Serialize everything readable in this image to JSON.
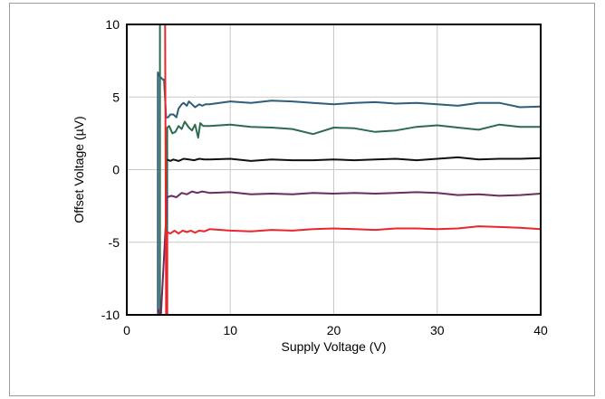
{
  "chart_data": {
    "type": "line",
    "title": "",
    "xlabel": "Supply Voltage (V)",
    "ylabel": "Offset Voltage (µV)",
    "xlim": [
      0,
      40
    ],
    "ylim": [
      -10,
      10
    ],
    "xticks": [
      0,
      10,
      20,
      30,
      40
    ],
    "yticks": [
      -10,
      -5,
      0,
      5,
      10
    ],
    "x_tick_labels": [
      "0",
      "10",
      "20",
      "30",
      "40"
    ],
    "y_tick_labels": [
      "-10",
      "-5",
      "0",
      "5",
      "10"
    ],
    "grid": true,
    "legend": "none",
    "series": [
      {
        "color": "#2e5f7a",
        "points": [
          [
            3.0,
            -10
          ],
          [
            3.0,
            6.7
          ],
          [
            3.2,
            6.4
          ],
          [
            3.5,
            6.2
          ],
          [
            3.6,
            6.2
          ],
          [
            3.8,
            3.6
          ],
          [
            4.0,
            3.6
          ],
          [
            4.2,
            3.8
          ],
          [
            4.5,
            3.8
          ],
          [
            4.8,
            3.6
          ],
          [
            5.0,
            4.2
          ],
          [
            5.3,
            4.5
          ],
          [
            5.5,
            4.6
          ],
          [
            5.8,
            4.4
          ],
          [
            6.0,
            4.7
          ],
          [
            6.3,
            4.5
          ],
          [
            6.6,
            4.3
          ],
          [
            7.0,
            4.5
          ],
          [
            7.3,
            4.4
          ],
          [
            7.6,
            4.5
          ],
          [
            8,
            4.5
          ],
          [
            10,
            4.7
          ],
          [
            12,
            4.6
          ],
          [
            14,
            4.75
          ],
          [
            16,
            4.7
          ],
          [
            18,
            4.6
          ],
          [
            20,
            4.5
          ],
          [
            22,
            4.6
          ],
          [
            24,
            4.65
          ],
          [
            26,
            4.55
          ],
          [
            28,
            4.6
          ],
          [
            30,
            4.5
          ],
          [
            32,
            4.4
          ],
          [
            34,
            4.6
          ],
          [
            36,
            4.6
          ],
          [
            38,
            4.3
          ],
          [
            40,
            4.35
          ]
        ]
      },
      {
        "color": "#2d6b4f",
        "points": [
          [
            3.2,
            10
          ],
          [
            3.2,
            -10
          ],
          [
            3.4,
            -10
          ],
          [
            3.6,
            -10
          ],
          [
            3.9,
            -10
          ],
          [
            3.9,
            2.9
          ],
          [
            4.1,
            3.0
          ],
          [
            4.4,
            2.5
          ],
          [
            4.7,
            2.6
          ],
          [
            5.0,
            3.0
          ],
          [
            5.3,
            2.8
          ],
          [
            5.6,
            3.3
          ],
          [
            6.0,
            2.9
          ],
          [
            6.3,
            2.7
          ],
          [
            6.6,
            3.1
          ],
          [
            6.9,
            2.2
          ],
          [
            7.1,
            3.2
          ],
          [
            7.4,
            3.0
          ],
          [
            8,
            3.0
          ],
          [
            10,
            3.1
          ],
          [
            12,
            2.95
          ],
          [
            14,
            2.9
          ],
          [
            16,
            2.8
          ],
          [
            18,
            2.45
          ],
          [
            20,
            2.9
          ],
          [
            22,
            2.85
          ],
          [
            24,
            2.6
          ],
          [
            26,
            2.7
          ],
          [
            28,
            2.95
          ],
          [
            30,
            3.05
          ],
          [
            32,
            2.9
          ],
          [
            34,
            2.75
          ],
          [
            36,
            3.1
          ],
          [
            38,
            2.95
          ],
          [
            40,
            2.95
          ]
        ]
      },
      {
        "color": "#111111",
        "points": [
          [
            3.9,
            0.7
          ],
          [
            4.2,
            0.6
          ],
          [
            4.5,
            0.7
          ],
          [
            5.0,
            0.6
          ],
          [
            5.5,
            0.75
          ],
          [
            6.0,
            0.7
          ],
          [
            6.5,
            0.65
          ],
          [
            7.0,
            0.75
          ],
          [
            7.5,
            0.7
          ],
          [
            8,
            0.7
          ],
          [
            10,
            0.75
          ],
          [
            12,
            0.6
          ],
          [
            14,
            0.7
          ],
          [
            16,
            0.65
          ],
          [
            18,
            0.65
          ],
          [
            20,
            0.7
          ],
          [
            22,
            0.65
          ],
          [
            24,
            0.7
          ],
          [
            26,
            0.75
          ],
          [
            28,
            0.65
          ],
          [
            30,
            0.75
          ],
          [
            32,
            0.85
          ],
          [
            34,
            0.7
          ],
          [
            36,
            0.75
          ],
          [
            38,
            0.75
          ],
          [
            40,
            0.8
          ]
        ]
      },
      {
        "color": "#6b2c5e",
        "points": [
          [
            3.0,
            -9.6
          ],
          [
            3.1,
            -9.8
          ],
          [
            3.3,
            -10
          ],
          [
            3.9,
            -1.9
          ],
          [
            4.3,
            -1.8
          ],
          [
            4.8,
            -1.9
          ],
          [
            5.3,
            -1.6
          ],
          [
            5.8,
            -1.7
          ],
          [
            6.3,
            -1.5
          ],
          [
            6.8,
            -1.6
          ],
          [
            7.3,
            -1.5
          ],
          [
            8,
            -1.6
          ],
          [
            10,
            -1.55
          ],
          [
            12,
            -1.7
          ],
          [
            14,
            -1.65
          ],
          [
            16,
            -1.7
          ],
          [
            18,
            -1.6
          ],
          [
            20,
            -1.65
          ],
          [
            22,
            -1.6
          ],
          [
            24,
            -1.65
          ],
          [
            26,
            -1.6
          ],
          [
            28,
            -1.55
          ],
          [
            30,
            -1.6
          ],
          [
            32,
            -1.75
          ],
          [
            34,
            -1.7
          ],
          [
            36,
            -1.8
          ],
          [
            38,
            -1.75
          ],
          [
            40,
            -1.65
          ]
        ]
      },
      {
        "color": "#e8262b",
        "points": [
          [
            3.7,
            10
          ],
          [
            3.8,
            -10
          ],
          [
            3.9,
            -10
          ],
          [
            3.9,
            -4.3
          ],
          [
            4.2,
            -4.4
          ],
          [
            4.6,
            -4.2
          ],
          [
            5.0,
            -4.4
          ],
          [
            5.4,
            -4.2
          ],
          [
            5.8,
            -4.3
          ],
          [
            6.2,
            -4.2
          ],
          [
            6.6,
            -4.35
          ],
          [
            7.0,
            -4.2
          ],
          [
            7.5,
            -4.25
          ],
          [
            8,
            -4.1
          ],
          [
            10,
            -4.2
          ],
          [
            12,
            -4.25
          ],
          [
            14,
            -4.15
          ],
          [
            16,
            -4.2
          ],
          [
            18,
            -4.1
          ],
          [
            20,
            -4.05
          ],
          [
            22,
            -4.1
          ],
          [
            24,
            -4.15
          ],
          [
            26,
            -4.05
          ],
          [
            28,
            -4.05
          ],
          [
            30,
            -4.1
          ],
          [
            32,
            -4.05
          ],
          [
            34,
            -3.9
          ],
          [
            36,
            -3.95
          ],
          [
            38,
            -4.0
          ],
          [
            40,
            -4.1
          ]
        ]
      }
    ]
  }
}
